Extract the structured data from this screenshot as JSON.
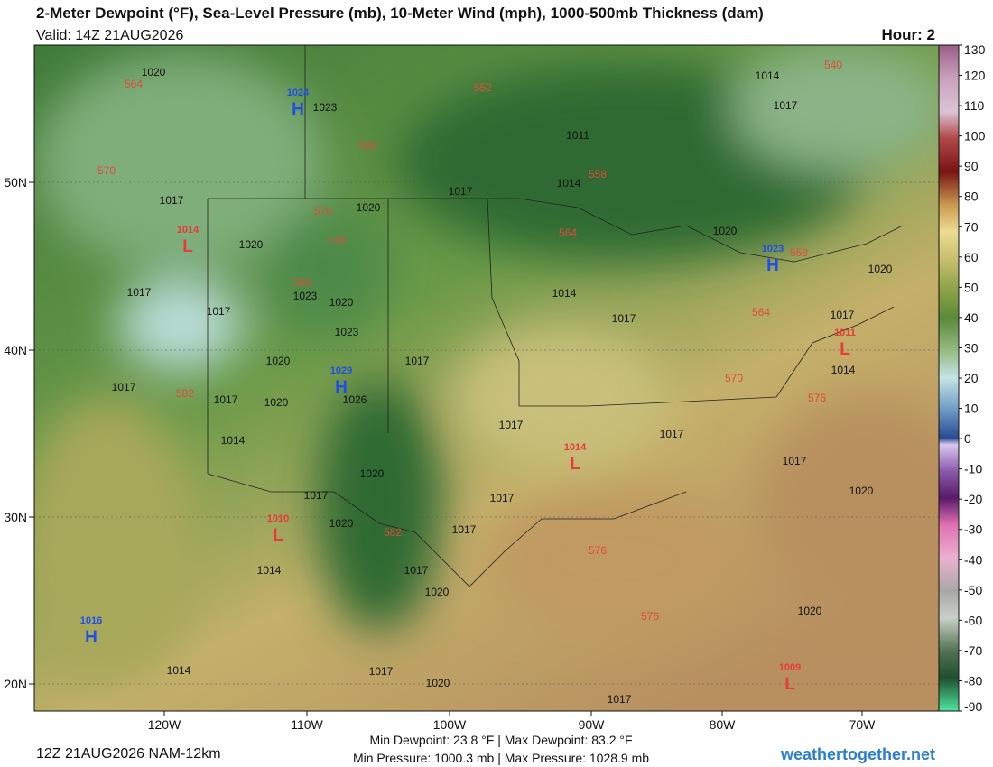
{
  "header": {
    "title": "2-Meter Dewpoint (°F), Sea-Level Pressure (mb), 10-Meter Wind (mph), 1000-500mb Thickness (dam)",
    "valid": "Valid: 14Z 21AUG2026",
    "hour": "Hour: 2"
  },
  "colorbar": {
    "ticks": [
      130,
      120,
      110,
      100,
      90,
      80,
      70,
      60,
      50,
      40,
      30,
      20,
      10,
      0,
      -10,
      -20,
      -30,
      -40,
      -50,
      -60,
      -70,
      -80,
      -90
    ]
  },
  "axes": {
    "lat_labels": [
      "50N",
      "40N",
      "30N",
      "20N"
    ],
    "lon_labels": [
      "120W",
      "110W",
      "100W",
      "90W",
      "80W",
      "70W"
    ]
  },
  "pressure_centers": [
    {
      "type": "H",
      "value": 1024
    },
    {
      "type": "L",
      "value": 1014
    },
    {
      "type": "H",
      "value": 1029
    },
    {
      "type": "H",
      "value": 1023
    },
    {
      "type": "L",
      "value": 1011
    },
    {
      "type": "L",
      "value": 1014
    },
    {
      "type": "L",
      "value": 1010
    },
    {
      "type": "H",
      "value": 1016
    },
    {
      "type": "L",
      "value": 1009
    }
  ],
  "isobar_labels": [
    1020,
    1023,
    1011,
    1017,
    1014,
    1017,
    1020,
    1020,
    1017,
    1023,
    1020,
    1017,
    1023,
    1014,
    1017,
    1017,
    1020,
    1026,
    1020,
    1017,
    1014,
    1017,
    1017,
    1017,
    1020,
    1017,
    1017,
    1017,
    1020,
    1017,
    1020,
    1020,
    1020,
    1014,
    1017,
    1020,
    1017,
    1014,
    1014,
    1020,
    1017,
    1020,
    1014,
    1017,
    1017
  ],
  "thickness_labels": [
    564,
    552,
    558,
    558,
    570,
    570,
    576,
    564,
    558,
    582,
    564,
    570,
    576,
    582,
    582,
    576,
    576,
    540
  ],
  "footer": {
    "run": "12Z 21AUG2026 NAM-12km",
    "dewpoint": "Min Dewpoint:  23.8 °F | Max Dewpoint:  83.2 °F",
    "pressure": "Min Pressure: 1000.3 mb | Max Pressure: 1028.9 mb",
    "site": "weathertogether.net"
  }
}
